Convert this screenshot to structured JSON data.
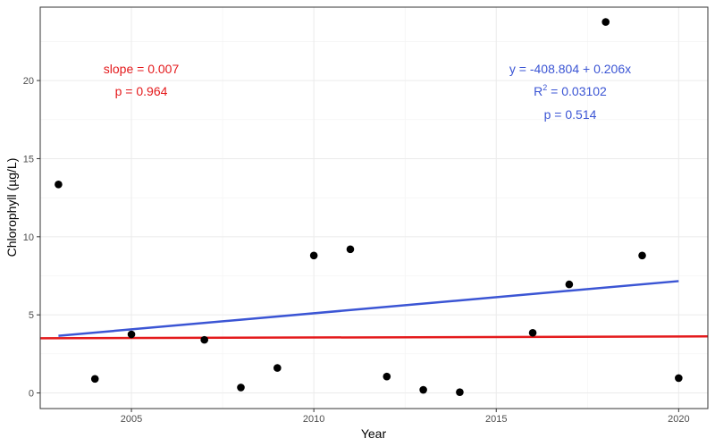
{
  "chart_data": {
    "type": "scatter",
    "xlabel": "Year",
    "ylabel": "Chlorophyll (µg/L)",
    "xlim": [
      2002.5,
      2020.8
    ],
    "ylim": [
      -1.0,
      24.7
    ],
    "x_ticks": [
      2005,
      2010,
      2015,
      2020
    ],
    "y_ticks": [
      0,
      5,
      10,
      15,
      20
    ],
    "grid": true,
    "points": [
      {
        "x": 2003,
        "y": 13.35
      },
      {
        "x": 2004,
        "y": 0.9
      },
      {
        "x": 2005,
        "y": 3.75
      },
      {
        "x": 2007,
        "y": 3.4
      },
      {
        "x": 2008,
        "y": 0.35
      },
      {
        "x": 2009,
        "y": 1.6
      },
      {
        "x": 2010,
        "y": 8.8
      },
      {
        "x": 2011,
        "y": 9.2
      },
      {
        "x": 2012,
        "y": 1.05
      },
      {
        "x": 2013,
        "y": 0.2
      },
      {
        "x": 2014,
        "y": 0.05
      },
      {
        "x": 2016,
        "y": 3.85
      },
      {
        "x": 2017,
        "y": 6.95
      },
      {
        "x": 2018,
        "y": 23.75
      },
      {
        "x": 2019,
        "y": 8.8
      },
      {
        "x": 2020,
        "y": 0.95
      }
    ],
    "lines": [
      {
        "color": "#3b55d4",
        "x": [
          2003,
          2020
        ],
        "y": [
          3.66,
          7.16
        ]
      },
      {
        "color": "#e41a1c",
        "x": [
          2002.5,
          2020.8
        ],
        "y": [
          3.5,
          3.62
        ]
      }
    ],
    "annotations": {
      "red": {
        "color": "#e41a1c",
        "slope": "slope = 0.007",
        "p": "p = 0.964"
      },
      "blue": {
        "color": "#3b55d4",
        "equation": "y = -408.804 + 0.206x",
        "r2_label": "R",
        "r2_sup": "2",
        "r2_value": " = 0.03102",
        "p": "p = 0.514"
      }
    }
  }
}
